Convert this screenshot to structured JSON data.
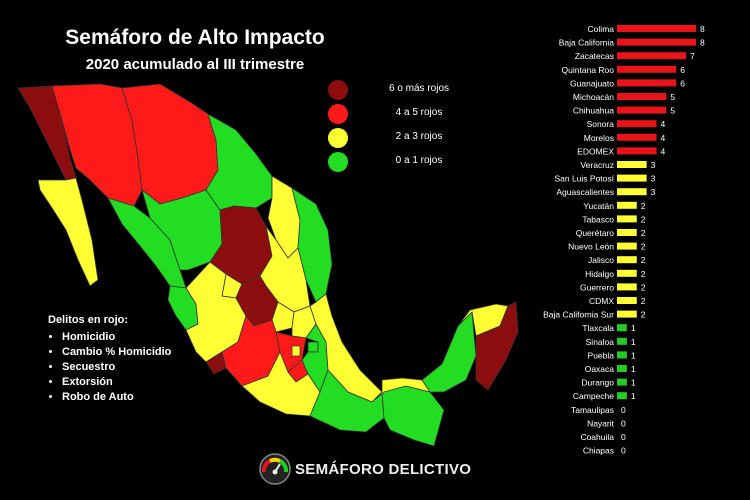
{
  "header": {
    "title": "Semáforo de Alto Impacto",
    "subtitle": "2020 acumulado al III trimestre"
  },
  "legend": [
    {
      "label": "6 o más rojos",
      "color": "#8b0d0d"
    },
    {
      "label": "4 a 5 rojos",
      "color": "#ff1a1a"
    },
    {
      "label": "2 a 3  rojos",
      "color": "#ffff33"
    },
    {
      "label": "0 a 1 rojos",
      "color": "#22dd22"
    }
  ],
  "crimes": {
    "heading": "Delitos en rojo:",
    "items": [
      "Homicidio",
      "Cambio % Homicidio",
      "Secuestro",
      "Extorsión",
      "Robo de Auto"
    ]
  },
  "logo": {
    "text": "SEMÁFORO DELICTIVO",
    "icon": "traffic-light-gauge-icon"
  },
  "chart_data": {
    "type": "bar",
    "orientation": "horizontal",
    "categories": [
      "Colima",
      "Baja California",
      "Zacatecas",
      "Quintana Roo",
      "Guanajuato",
      "Michoacán",
      "Chihuahua",
      "Sonora",
      "Morelos",
      "EDOMEX",
      "Veracruz",
      "San Luis Potosí",
      "Aguascalientes",
      "Yucatán",
      "Tabasco",
      "Querétaro",
      "Nuevo León",
      "Jalisco",
      "Hidalgo",
      "Guerrero",
      "CDMX",
      "Baja California Sur",
      "Tlaxcala",
      "Sinaloa",
      "Puebla",
      "Oaxaca",
      "Durango",
      "Campeche",
      "Tamaulipas",
      "Nayarit",
      "Coahuila",
      "Chiapas"
    ],
    "values": [
      8,
      8,
      7,
      6,
      6,
      5,
      5,
      4,
      4,
      4,
      3,
      3,
      3,
      2,
      2,
      2,
      2,
      2,
      2,
      2,
      2,
      2,
      1,
      1,
      1,
      1,
      1,
      1,
      0,
      0,
      0,
      0
    ],
    "colors": {
      "red": "#e8141a",
      "yellow": "#ffff33",
      "green": "#22cc22"
    },
    "xlim": [
      0,
      8
    ],
    "grid": false
  },
  "map_colors": {
    "dark_red": "#8b0d0d",
    "red": "#ff1a1a",
    "yellow": "#ffff33",
    "green": "#22dd22",
    "border": "#333333"
  }
}
